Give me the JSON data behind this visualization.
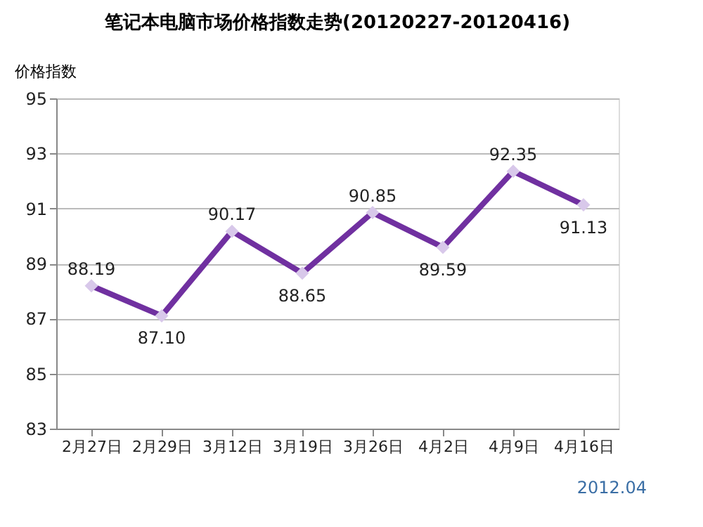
{
  "chart_data": {
    "type": "line",
    "title": "笔记本电脑市场价格指数走势(20120227-20120416)",
    "ylabel": "价格指数",
    "categories": [
      "2月27日",
      "2月29日",
      "3月12日",
      "3月19日",
      "3月26日",
      "4月2日",
      "4月9日",
      "4月16日"
    ],
    "series": [
      {
        "color": "#7030a0",
        "values": [
          88.19,
          87.1,
          90.17,
          88.65,
          90.85,
          89.59,
          92.35,
          91.13
        ],
        "value_labels": [
          "88.19",
          "87.10",
          "90.17",
          "88.65",
          "90.85",
          "89.59",
          "92.35",
          "91.13"
        ]
      }
    ],
    "ylim": [
      83,
      95
    ],
    "yticks": [
      83,
      85,
      87,
      89,
      91,
      93,
      95
    ],
    "grid": "y",
    "marker": "diamond",
    "line_style": "solid",
    "annotations": [
      "2012.04"
    ]
  }
}
